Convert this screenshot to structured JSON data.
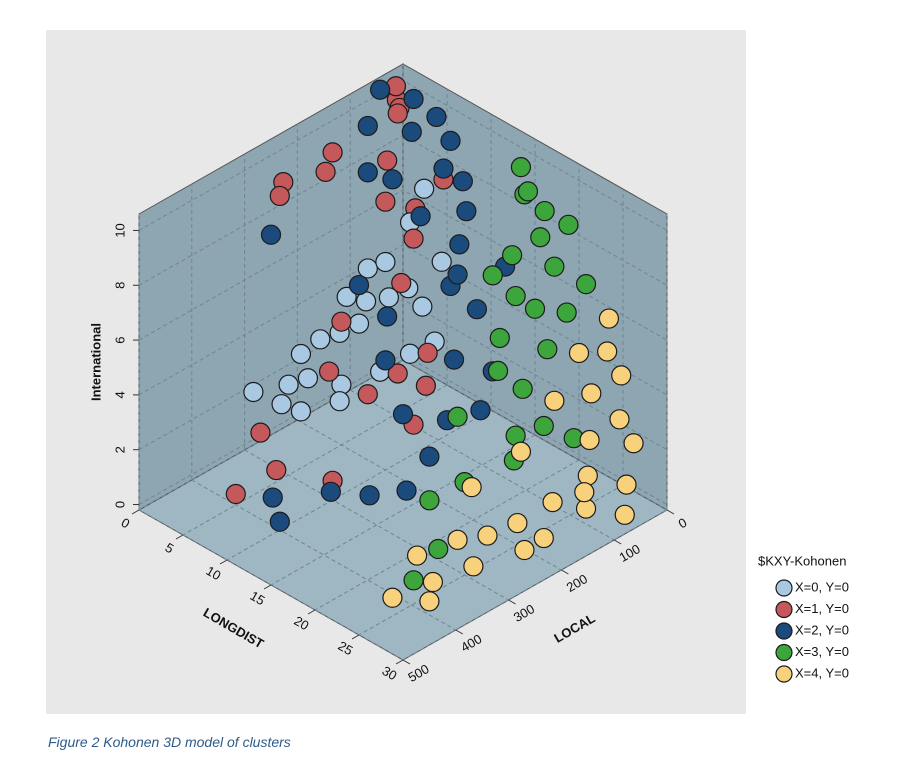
{
  "chart_data": {
    "type": "scatter3d",
    "xlabel": "LONGDIST",
    "ylabel": "LOCAL",
    "zlabel": "International",
    "xlim": [
      0,
      30
    ],
    "ylim": [
      0,
      500
    ],
    "zlim": [
      -0.2,
      10.6
    ],
    "xticks": [
      0,
      5,
      10,
      15,
      20,
      25,
      30
    ],
    "yticks": [
      0,
      100,
      200,
      300,
      400,
      500
    ],
    "zticks": [
      0,
      2,
      4,
      6,
      8,
      10
    ],
    "grid": true,
    "legend_title": "$KXY-Kohonen",
    "series": [
      {
        "name": "X=0, Y=0",
        "color": "#a9c9e2",
        "x": [
          2,
          3,
          1,
          2,
          3,
          4,
          2,
          3,
          5,
          4,
          6,
          5,
          6,
          7,
          3,
          1,
          4,
          5,
          6,
          8,
          7,
          2,
          8,
          9
        ],
        "y": [
          250,
          230,
          210,
          190,
          170,
          150,
          140,
          120,
          200,
          260,
          220,
          110,
          90,
          80,
          280,
          300,
          100,
          70,
          60,
          120,
          160,
          100,
          60,
          90
        ],
        "z": [
          2,
          2.2,
          2.5,
          3,
          3.2,
          3.5,
          4,
          3.8,
          2,
          1.5,
          1.8,
          4.2,
          4.5,
          3.9,
          1.8,
          2.1,
          5.2,
          6.5,
          7.8,
          2.8,
          2.4,
          4.6,
          5.5,
          3.1
        ]
      },
      {
        "name": "X=1, Y=0",
        "color": "#c4585a",
        "x": [
          1,
          2,
          0.5,
          3,
          1,
          2,
          3,
          4,
          5,
          6,
          7,
          5,
          6,
          8,
          9,
          10,
          11,
          3,
          6,
          10,
          5,
          12,
          7,
          2,
          4
        ],
        "y": [
          30,
          40,
          20,
          60,
          150,
          180,
          80,
          100,
          60,
          80,
          120,
          200,
          240,
          200,
          160,
          120,
          140,
          320,
          340,
          300,
          400,
          180,
          40,
          260,
          300
        ],
        "z": [
          10.3,
          9.8,
          9.6,
          10,
          9.2,
          9,
          8.5,
          7.4,
          6.9,
          6.2,
          5.2,
          4.3,
          3.1,
          2.2,
          2.7,
          3.2,
          2.4,
          1.2,
          0.6,
          0.5,
          0.2,
          1.6,
          8.1,
          9.5,
          9.8
        ]
      },
      {
        "name": "X=2, Y=0",
        "color": "#1b4b7c",
        "x": [
          1,
          2,
          3,
          4,
          5,
          6,
          7,
          8,
          9,
          6,
          5,
          8,
          10,
          11,
          12,
          9,
          10,
          13,
          12,
          14,
          15,
          16,
          11,
          13,
          8,
          10,
          3,
          7,
          15,
          16,
          9,
          14
        ],
        "y": [
          60,
          100,
          30,
          50,
          20,
          10,
          40,
          20,
          30,
          120,
          150,
          100,
          60,
          80,
          60,
          180,
          200,
          120,
          200,
          150,
          200,
          260,
          320,
          280,
          380,
          400,
          300,
          200,
          80,
          120,
          60,
          40
        ],
        "z": [
          10.5,
          9.8,
          10.2,
          9.4,
          9.8,
          9,
          8.5,
          8,
          7.2,
          8.8,
          9.2,
          7.6,
          6.5,
          5.8,
          4.5,
          5,
          3.8,
          3.5,
          2.2,
          1.8,
          1.2,
          0.8,
          0.5,
          0.3,
          0.4,
          0.1,
          8.2,
          6,
          3,
          2.2,
          4.8,
          6.2
        ]
      },
      {
        "name": "X=3, Y=0",
        "color": "#3ca53c",
        "x": [
          14,
          15,
          16,
          17,
          18,
          16,
          15,
          17,
          18,
          19,
          20,
          17,
          18,
          19,
          20,
          21,
          22,
          20,
          21,
          22,
          19,
          18,
          23,
          22,
          24,
          17
        ],
        "y": [
          10,
          20,
          30,
          15,
          40,
          60,
          80,
          70,
          50,
          30,
          20,
          100,
          120,
          90,
          60,
          40,
          20,
          120,
          140,
          100,
          200,
          250,
          60,
          300,
          380,
          180
        ],
        "z": [
          9.5,
          8.8,
          9.2,
          8.5,
          8,
          7.2,
          6.5,
          6,
          5.5,
          7,
          8.6,
          4.8,
          4,
          3.2,
          4.5,
          5.8,
          6.8,
          2,
          1.5,
          2.5,
          1,
          0.7,
          1.8,
          0.2,
          0.3,
          2.8
        ]
      },
      {
        "name": "X=4, Y=0",
        "color": "#f7d17c",
        "x": [
          24,
          25,
          26,
          23,
          22,
          25,
          27,
          26,
          28,
          27,
          29,
          28,
          30,
          26,
          25,
          24,
          27,
          23,
          26,
          22,
          25,
          24,
          27,
          21,
          23,
          29,
          28
        ],
        "y": [
          10,
          30,
          20,
          50,
          80,
          60,
          40,
          80,
          30,
          100,
          60,
          120,
          80,
          150,
          200,
          240,
          220,
          280,
          300,
          340,
          360,
          420,
          400,
          220,
          160,
          140,
          200
        ],
        "z": [
          5.8,
          5,
          4.2,
          4.8,
          3.2,
          3.8,
          3,
          2.5,
          2.2,
          1.6,
          1.2,
          0.8,
          0.5,
          1,
          0.6,
          0.4,
          0.2,
          0.5,
          0.3,
          0.4,
          0.2,
          0.1,
          0.3,
          1.4,
          2.4,
          1.8,
          0.6
        ]
      }
    ]
  },
  "caption": "Figure 2 Kohonen 3D model of clusters"
}
